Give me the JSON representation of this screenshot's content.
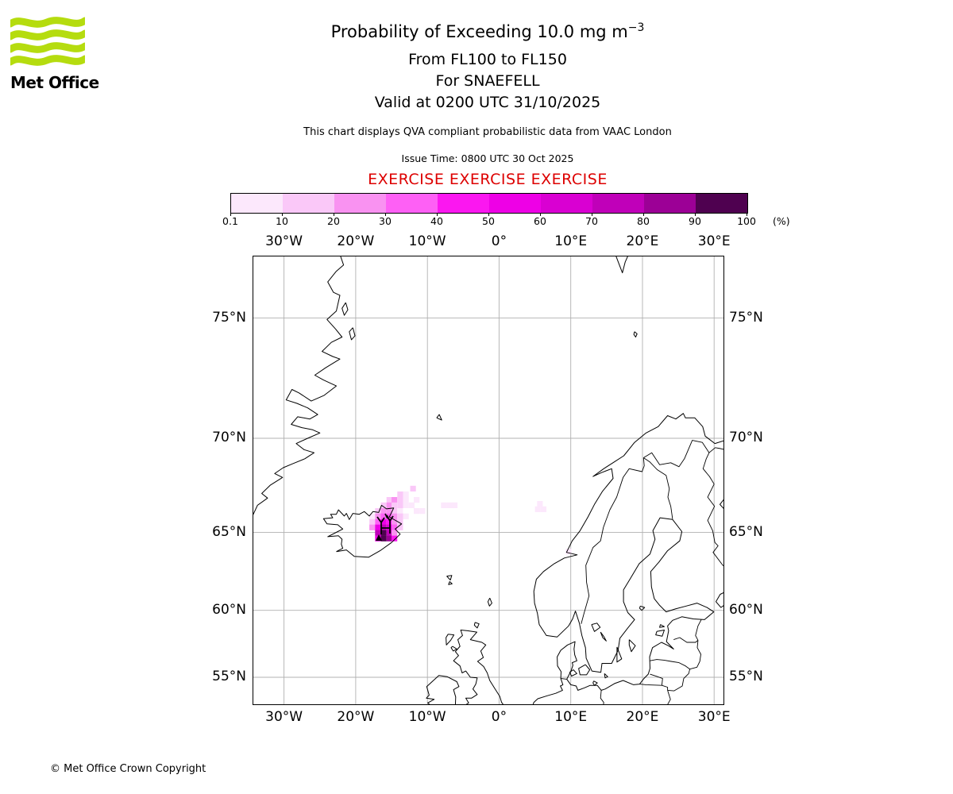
{
  "header": {
    "logo_text": "Met Office",
    "logo_green": "#b5dc0f",
    "title_main": "Probability of Exceeding 10.0 mg m",
    "title_sup": "−3",
    "subtitle_flight_levels": "From FL100 to FL150",
    "subtitle_volcano": "For SNAEFELL",
    "subtitle_valid": "Valid at 0200 UTC 31/10/2025",
    "disclaimer": "This chart displays QVA compliant probabilistic data from VAAC London",
    "issue_time": "Issue Time: 0800 UTC 30 Oct 2025",
    "exercise_text": "EXERCISE EXERCISE EXERCISE",
    "exercise_color": "#dd0000"
  },
  "colorbar": {
    "tick_labels": [
      "0.1",
      "10",
      "20",
      "30",
      "40",
      "50",
      "60",
      "70",
      "80",
      "90",
      "100"
    ],
    "unit_label": "(%)",
    "colors": [
      "#fce8fc",
      "#fac8f8",
      "#f992f1",
      "#fe60f5",
      "#fb17f0",
      "#ee00e6",
      "#d900d2",
      "#c000b9",
      "#9c0096",
      "#4f0150"
    ]
  },
  "map": {
    "projection": "mercator",
    "extent": {
      "lon_min": -34.4,
      "lon_max": 31.4,
      "lat_min": 52.7,
      "lat_max": 77.1
    },
    "grid_color": "#b0b0b0",
    "lon_ticks": [
      {
        "label": "30°W",
        "lon": -30
      },
      {
        "label": "20°W",
        "lon": -20
      },
      {
        "label": "10°W",
        "lon": -10
      },
      {
        "label": "0°",
        "lon": 0
      },
      {
        "label": "10°E",
        "lon": 10
      },
      {
        "label": "20°E",
        "lon": 20
      },
      {
        "label": "30°E",
        "lon": 30
      }
    ],
    "lat_ticks": [
      {
        "label": "75°N",
        "lat": 75
      },
      {
        "label": "70°N",
        "lat": 70
      },
      {
        "label": "65°N",
        "lat": 65
      },
      {
        "label": "60°N",
        "lat": 60
      },
      {
        "label": "55°N",
        "lat": 55
      }
    ],
    "volcano": {
      "name": "SNAEFELL",
      "lon": -15.57,
      "lat": 64.87
    }
  },
  "chart_data": {
    "type": "heatmap",
    "title": "Probability of Exceeding 10.0 mg m-3, FL100-FL150, SNAEFELL, 0200 UTC 31/10/2025",
    "units": "%",
    "level_thresholds": [
      0.1,
      10,
      20,
      30,
      40,
      50,
      60,
      70,
      80,
      90,
      100
    ],
    "cell_format": [
      "lon",
      "lat",
      "level_index_1_to_10"
    ],
    "cells": [
      [
        -12.0,
        67.46,
        2
      ],
      [
        -13.8,
        67.15,
        2
      ],
      [
        -13.0,
        67.15,
        1
      ],
      [
        -15.3,
        66.85,
        2
      ],
      [
        -14.6,
        66.85,
        3
      ],
      [
        -13.8,
        66.85,
        2
      ],
      [
        -13.0,
        66.85,
        1
      ],
      [
        -11.5,
        66.85,
        1
      ],
      [
        -16.1,
        66.55,
        2
      ],
      [
        -15.3,
        66.55,
        3
      ],
      [
        -14.6,
        66.55,
        2
      ],
      [
        -13.8,
        66.55,
        2
      ],
      [
        -13.0,
        66.55,
        1
      ],
      [
        -12.2,
        66.55,
        1
      ],
      [
        -7.7,
        66.55,
        1
      ],
      [
        -6.9,
        66.55,
        1
      ],
      [
        -6.2,
        66.55,
        1
      ],
      [
        5.7,
        66.63,
        1
      ],
      [
        -16.9,
        66.23,
        2
      ],
      [
        -16.1,
        66.23,
        3
      ],
      [
        -15.3,
        66.23,
        3
      ],
      [
        -14.6,
        66.23,
        2
      ],
      [
        -13.8,
        66.23,
        1
      ],
      [
        -11.5,
        66.23,
        1
      ],
      [
        -10.7,
        66.23,
        1
      ],
      [
        5.4,
        66.33,
        1
      ],
      [
        6.2,
        66.33,
        1
      ],
      [
        -17.7,
        65.93,
        1
      ],
      [
        -16.9,
        65.93,
        3
      ],
      [
        -16.1,
        65.93,
        4
      ],
      [
        -15.3,
        65.93,
        4
      ],
      [
        -14.6,
        65.93,
        3
      ],
      [
        -13.8,
        65.93,
        2
      ],
      [
        -13.0,
        65.93,
        1
      ],
      [
        -17.7,
        65.61,
        2
      ],
      [
        -16.9,
        65.61,
        4
      ],
      [
        -16.1,
        65.61,
        6
      ],
      [
        -15.3,
        65.61,
        5
      ],
      [
        -14.6,
        65.61,
        3
      ],
      [
        -13.8,
        65.61,
        2
      ],
      [
        -17.7,
        65.29,
        3
      ],
      [
        -16.9,
        65.29,
        6
      ],
      [
        -16.1,
        65.29,
        8
      ],
      [
        -15.3,
        65.29,
        7
      ],
      [
        -14.6,
        65.29,
        4
      ],
      [
        -13.8,
        65.29,
        2
      ],
      [
        -16.9,
        64.97,
        8
      ],
      [
        -16.1,
        64.97,
        10
      ],
      [
        -15.3,
        64.97,
        8
      ],
      [
        -14.6,
        64.97,
        3
      ],
      [
        -16.9,
        64.64,
        6
      ],
      [
        -16.1,
        64.64,
        10
      ],
      [
        -15.3,
        64.64,
        9
      ],
      [
        -14.6,
        64.64,
        5
      ],
      [
        9.7,
        63.85,
        1
      ]
    ]
  },
  "footer": {
    "copyright": "© Met Office Crown Copyright"
  }
}
